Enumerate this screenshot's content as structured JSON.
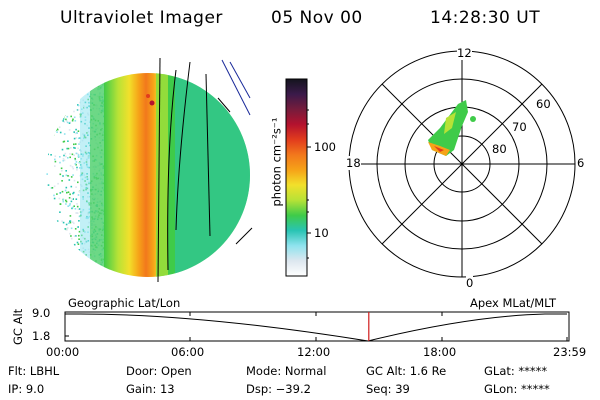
{
  "header": {
    "instrument": "Ultraviolet Imager",
    "date": "05 Nov 00",
    "time": "14:28:30 UT"
  },
  "colorbar": {
    "unit_label": "photon cm⁻²s⁻¹",
    "ticks": [
      "100",
      "10"
    ],
    "tick_values": [
      100,
      10
    ],
    "stops": [
      "#ffffff",
      "#dde7ef",
      "#8fe3ee",
      "#29c4b3",
      "#3fcb49",
      "#b7e236",
      "#f2e02b",
      "#f6a318",
      "#f2781c",
      "#e23c1d",
      "#b4122e",
      "#761c3c",
      "#3b1a4a",
      "#14141e"
    ]
  },
  "polar": {
    "mlt_labels": {
      "top": "12",
      "right": "6",
      "bottom": "0",
      "left": "18"
    },
    "lat_labels": [
      "60",
      "70",
      "80"
    ]
  },
  "left_label": "Geographic Lat/Lon",
  "right_label": "Apex MLat/MLT",
  "altitude_plot": {
    "axis_label": "GC Alt",
    "y_ticks": [
      "9.0",
      "1.8"
    ],
    "x_ticks": [
      "00:00",
      "06:00",
      "12:00",
      "18:00",
      "23:59"
    ],
    "marker_time": "14:28",
    "marker_color": "#d01c1c"
  },
  "status": {
    "flt": "Flt: LBHL",
    "ip": "IP: 9.0",
    "door": "Door: Open",
    "gain": "Gain: 13",
    "mode": "Mode: Normal",
    "dsp": "Dsp: −39.2",
    "gc_alt": "GC Alt: 1.6 Re",
    "seq": "Seq: 39",
    "glat": "GLat: *****",
    "glon": "GLon: *****"
  }
}
